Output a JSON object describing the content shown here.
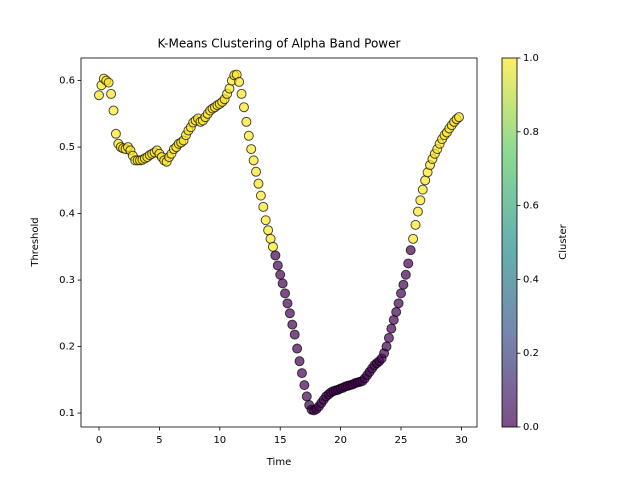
{
  "chart_data": {
    "type": "scatter",
    "title": "K-Means Clustering of Alpha Band Power",
    "x_label": "Time",
    "y_label": "Threshold",
    "colorbar_label": "Cluster",
    "x": [
      0,
      0.2,
      0.4,
      0.6,
      0.8,
      1,
      1.2,
      1.4,
      1.6,
      1.8,
      2,
      2.2,
      2.4,
      2.6,
      2.8,
      3,
      3.2,
      3.4,
      3.6,
      3.8,
      4,
      4.2,
      4.4,
      4.6,
      4.8,
      5,
      5.2,
      5.4,
      5.6,
      5.8,
      6,
      6.2,
      6.4,
      6.6,
      6.8,
      7,
      7.2,
      7.4,
      7.6,
      7.8,
      8,
      8.2,
      8.4,
      8.6,
      8.8,
      9,
      9.2,
      9.4,
      9.6,
      9.8,
      10,
      10.2,
      10.4,
      10.6,
      10.8,
      11,
      11.2,
      11.4,
      11.6,
      11.8,
      12,
      12.2,
      12.4,
      12.6,
      12.8,
      13,
      13.2,
      13.4,
      13.6,
      13.8,
      14,
      14.2,
      14.4,
      14.6,
      14.8,
      15,
      15.2,
      15.4,
      15.6,
      15.8,
      16,
      16.2,
      16.4,
      16.6,
      16.8,
      17,
      17.2,
      17.4,
      17.6,
      17.8,
      18,
      18.2,
      18.4,
      18.6,
      18.8,
      19,
      19.2,
      19.4,
      19.6,
      19.8,
      20,
      20.2,
      20.4,
      20.6,
      20.8,
      21,
      21.2,
      21.4,
      21.6,
      21.8,
      22,
      22.2,
      22.4,
      22.6,
      22.8,
      23,
      23.2,
      23.4,
      23.6,
      23.8,
      24,
      24.2,
      24.4,
      24.6,
      24.8,
      25,
      25.2,
      25.4,
      25.6,
      25.8,
      26,
      26.2,
      26.4,
      26.6,
      26.8,
      27,
      27.2,
      27.4,
      27.6,
      27.8,
      28,
      28.2,
      28.4,
      28.6,
      28.8,
      29,
      29.2,
      29.4,
      29.6,
      29.8
    ],
    "values": [
      0.578,
      0.593,
      0.603,
      0.6,
      0.597,
      0.58,
      0.555,
      0.52,
      0.505,
      0.5,
      0.498,
      0.497,
      0.5,
      0.495,
      0.487,
      0.48,
      0.48,
      0.48,
      0.481,
      0.483,
      0.485,
      0.488,
      0.49,
      0.492,
      0.495,
      0.49,
      0.485,
      0.48,
      0.478,
      0.485,
      0.49,
      0.497,
      0.5,
      0.505,
      0.507,
      0.51,
      0.518,
      0.525,
      0.53,
      0.537,
      0.54,
      0.543,
      0.538,
      0.54,
      0.545,
      0.55,
      0.555,
      0.558,
      0.56,
      0.563,
      0.565,
      0.568,
      0.572,
      0.58,
      0.588,
      0.6,
      0.608,
      0.609,
      0.598,
      0.58,
      0.56,
      0.538,
      0.517,
      0.497,
      0.48,
      0.463,
      0.445,
      0.427,
      0.41,
      0.39,
      0.375,
      0.362,
      0.35,
      0.337,
      0.322,
      0.308,
      0.295,
      0.28,
      0.265,
      0.25,
      0.233,
      0.218,
      0.197,
      0.178,
      0.16,
      0.142,
      0.125,
      0.112,
      0.105,
      0.104,
      0.106,
      0.11,
      0.115,
      0.12,
      0.125,
      0.128,
      0.131,
      0.133,
      0.134,
      0.135,
      0.137,
      0.138,
      0.14,
      0.141,
      0.142,
      0.143,
      0.145,
      0.146,
      0.147,
      0.148,
      0.152,
      0.157,
      0.162,
      0.167,
      0.172,
      0.175,
      0.178,
      0.182,
      0.19,
      0.2,
      0.213,
      0.227,
      0.24,
      0.252,
      0.265,
      0.28,
      0.293,
      0.308,
      0.325,
      0.345,
      0.362,
      0.383,
      0.403,
      0.42,
      0.436,
      0.45,
      0.462,
      0.473,
      0.482,
      0.49,
      0.497,
      0.505,
      0.512,
      0.518,
      0.522,
      0.528,
      0.533,
      0.538,
      0.542,
      0.545
    ],
    "cluster": [
      1,
      1,
      1,
      1,
      1,
      1,
      1,
      1,
      1,
      1,
      1,
      1,
      1,
      1,
      1,
      1,
      1,
      1,
      1,
      1,
      1,
      1,
      1,
      1,
      1,
      1,
      1,
      1,
      1,
      1,
      1,
      1,
      1,
      1,
      1,
      1,
      1,
      1,
      1,
      1,
      1,
      1,
      1,
      1,
      1,
      1,
      1,
      1,
      1,
      1,
      1,
      1,
      1,
      1,
      1,
      1,
      1,
      1,
      1,
      1,
      1,
      1,
      1,
      1,
      1,
      1,
      1,
      1,
      1,
      1,
      1,
      1,
      1,
      0,
      0,
      0,
      0,
      0,
      0,
      0,
      0,
      0,
      0,
      0,
      0,
      0,
      0,
      0,
      0,
      0,
      0,
      0,
      0,
      0,
      0,
      0,
      0,
      0,
      0,
      0,
      0,
      0,
      0,
      0,
      0,
      0,
      0,
      0,
      0,
      0,
      0,
      0,
      0,
      0,
      0,
      0,
      0,
      0,
      0,
      0,
      0,
      0,
      0,
      0,
      0,
      0,
      0,
      0,
      0,
      0,
      1,
      1,
      1,
      1,
      1,
      1,
      1,
      1,
      1,
      1,
      1,
      1,
      1,
      1,
      1,
      1,
      1,
      1,
      1,
      1
    ],
    "colormap": [
      "#440154",
      "#3b528b",
      "#21918c",
      "#5ec962",
      "#fde725"
    ],
    "alpha": 0.7,
    "edge_color": "#000000",
    "xlim": [
      -1.49,
      31.29
    ],
    "ylim": [
      0.079,
      0.634
    ],
    "clim": [
      0,
      1
    ],
    "xticks": [
      0,
      5,
      10,
      15,
      20,
      25,
      30
    ],
    "yticks": [
      0.1,
      0.2,
      0.3,
      0.4,
      0.5,
      0.6
    ],
    "cticks": [
      {
        "value": 0,
        "label": "0.0"
      },
      0.2,
      0.4,
      0.6,
      0.8,
      {
        "value": 1,
        "label": "1.0"
      }
    ]
  }
}
